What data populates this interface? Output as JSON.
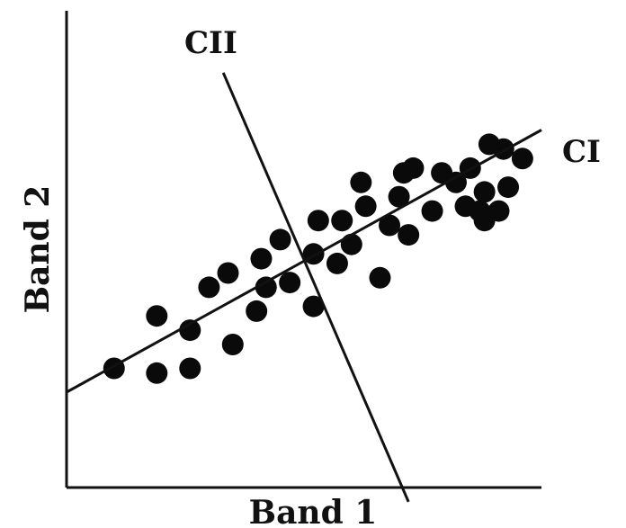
{
  "figure": {
    "x_axis_label": "Band 1",
    "y_axis_label": "Band 2",
    "component_1_label": "CI",
    "component_2_label": "CII"
  },
  "chart_data": {
    "type": "scatter",
    "title": "",
    "xlabel": "Band 1",
    "ylabel": "Band 2",
    "xlim": [
      0,
      100
    ],
    "ylim": [
      0,
      100
    ],
    "grid": false,
    "points": [
      {
        "x": 10,
        "y": 25
      },
      {
        "x": 19,
        "y": 24
      },
      {
        "x": 26,
        "y": 25
      },
      {
        "x": 19,
        "y": 36
      },
      {
        "x": 26,
        "y": 33
      },
      {
        "x": 35,
        "y": 30
      },
      {
        "x": 30,
        "y": 42
      },
      {
        "x": 34,
        "y": 45
      },
      {
        "x": 42,
        "y": 42
      },
      {
        "x": 40,
        "y": 37
      },
      {
        "x": 47,
        "y": 43
      },
      {
        "x": 52,
        "y": 38
      },
      {
        "x": 41,
        "y": 48
      },
      {
        "x": 45,
        "y": 52
      },
      {
        "x": 52,
        "y": 49
      },
      {
        "x": 53,
        "y": 56
      },
      {
        "x": 58,
        "y": 56
      },
      {
        "x": 57,
        "y": 47
      },
      {
        "x": 60,
        "y": 51
      },
      {
        "x": 66,
        "y": 44
      },
      {
        "x": 68,
        "y": 55
      },
      {
        "x": 72,
        "y": 53
      },
      {
        "x": 70,
        "y": 61
      },
      {
        "x": 71,
        "y": 66
      },
      {
        "x": 77,
        "y": 58
      },
      {
        "x": 73,
        "y": 67
      },
      {
        "x": 79,
        "y": 66
      },
      {
        "x": 82,
        "y": 64
      },
      {
        "x": 84,
        "y": 59
      },
      {
        "x": 85,
        "y": 67
      },
      {
        "x": 88,
        "y": 56
      },
      {
        "x": 89,
        "y": 72
      },
      {
        "x": 92,
        "y": 71
      },
      {
        "x": 88,
        "y": 62
      },
      {
        "x": 93,
        "y": 63
      },
      {
        "x": 96,
        "y": 69
      },
      {
        "x": 91,
        "y": 58
      },
      {
        "x": 87,
        "y": 58
      },
      {
        "x": 63,
        "y": 59
      },
      {
        "x": 62,
        "y": 64
      }
    ],
    "component_axes": [
      {
        "name": "CI",
        "from": [
          0,
          20
        ],
        "to": [
          100,
          75
        ]
      },
      {
        "name": "CII",
        "from": [
          33,
          87
        ],
        "to": [
          72,
          -3
        ]
      }
    ]
  }
}
